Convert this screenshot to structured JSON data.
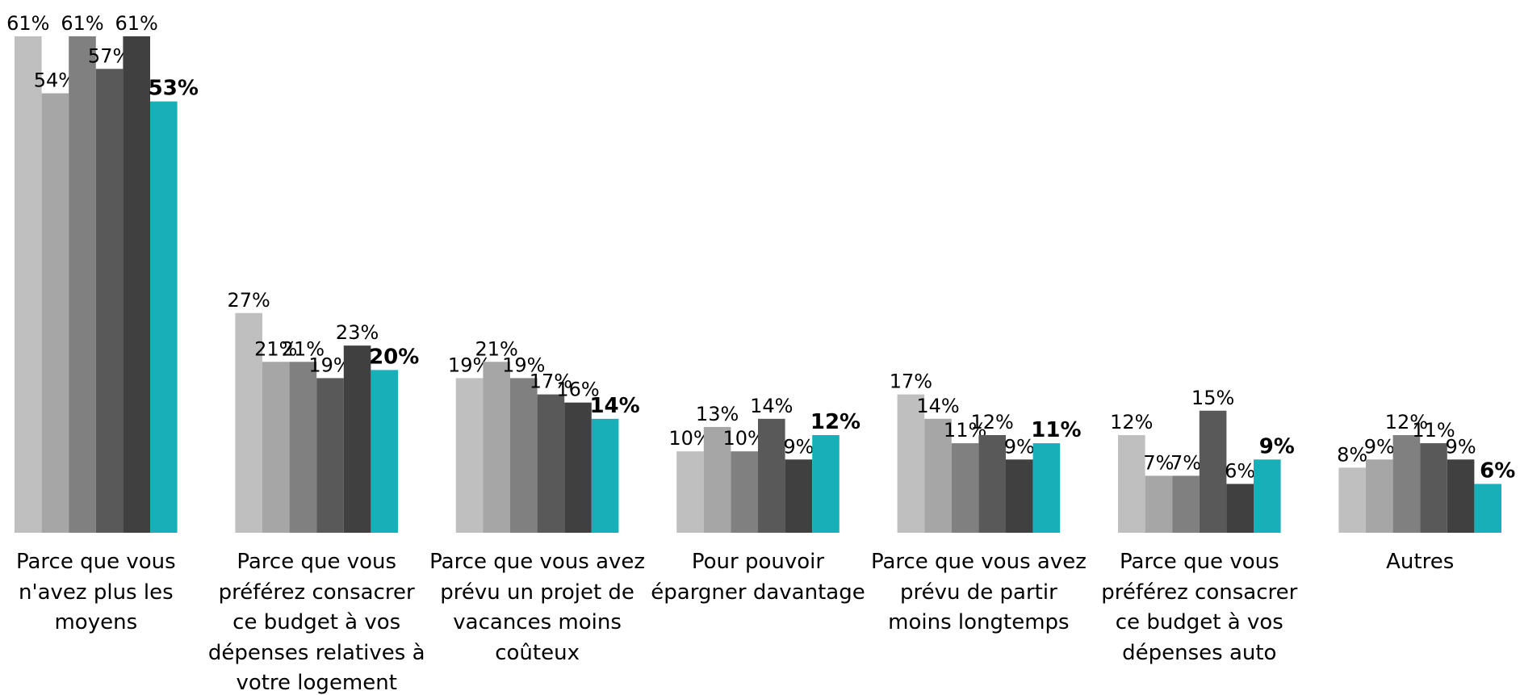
{
  "chart_data": {
    "type": "bar",
    "categories": [
      "Parce que vous n'avez plus les moyens",
      "Parce que vous préférez consacrer ce budget à vos dépenses relatives à votre logement",
      "Parce que vous avez prévu un projet de vacances moins coûteux",
      "Pour pouvoir épargner davantage",
      "Parce que vous avez prévu de partir moins longtemps",
      "Parce que vous préférez consacrer ce budget à vos dépenses auto",
      "Autres"
    ],
    "series": [
      {
        "color": "#bfbfbf",
        "values": [
          61,
          27,
          19,
          10,
          17,
          12,
          8
        ],
        "value_labels": [
          "61%",
          "27%",
          "19%",
          "10%",
          "17%",
          "12%",
          "8%"
        ]
      },
      {
        "color": "#a6a6a6",
        "values": [
          54,
          21,
          21,
          13,
          14,
          7,
          9
        ],
        "value_labels": [
          "54%",
          "21%",
          "21%",
          "13%",
          "14%",
          "7%",
          "9%"
        ]
      },
      {
        "color": "#808080",
        "values": [
          61,
          21,
          19,
          10,
          11,
          7,
          12
        ],
        "value_labels": [
          "61%",
          "21%",
          "19%",
          "10%",
          "11%",
          "7%",
          "12%"
        ]
      },
      {
        "color": "#595959",
        "values": [
          57,
          19,
          17,
          14,
          12,
          15,
          11
        ],
        "value_labels": [
          "57%",
          "19%",
          "17%",
          "14%",
          "12%",
          "15%",
          "11%"
        ]
      },
      {
        "color": "#404040",
        "values": [
          61,
          23,
          16,
          9,
          9,
          6,
          9
        ],
        "value_labels": [
          "61%",
          "23%",
          "16%",
          "9%",
          "9%",
          "6%",
          "9%"
        ]
      },
      {
        "color": "#17b0b9",
        "values": [
          53,
          20,
          14,
          12,
          11,
          9,
          6
        ],
        "value_labels": [
          "53%",
          "20%",
          "14%",
          "12%",
          "11%",
          "9%",
          "6%"
        ],
        "bold_labels": true
      }
    ]
  }
}
